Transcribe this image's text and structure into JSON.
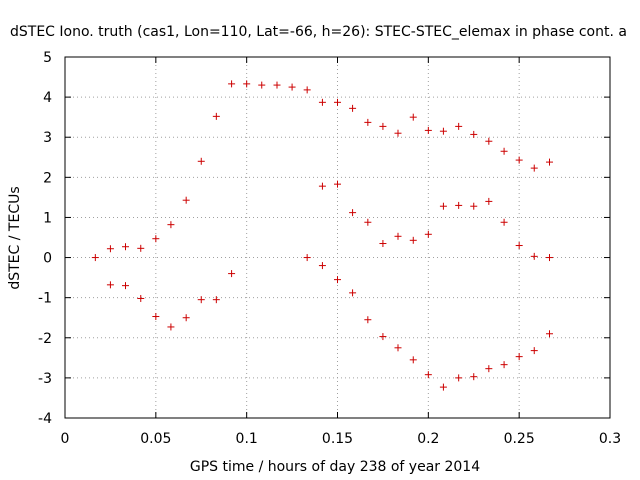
{
  "chart_data": {
    "type": "scatter",
    "title": "dSTEC Iono. truth (cas1, Lon=110, Lat=-66, h=26): STEC-STEC_elemax in phase cont. a",
    "xlabel": "GPS time / hours of day 238 of year 2014",
    "ylabel": "dSTEC  / TECUs",
    "xlim": [
      0,
      0.3
    ],
    "ylim": [
      -4,
      5
    ],
    "x_ticks": [
      0,
      0.05,
      0.1,
      0.15,
      0.2,
      0.25,
      0.3
    ],
    "x_tick_labels": [
      "0",
      "0.05",
      "0.1",
      "0.15",
      "0.2",
      "0.25",
      "0.3"
    ],
    "y_ticks": [
      -4,
      -3,
      -2,
      -1,
      0,
      1,
      2,
      3,
      4,
      5
    ],
    "y_tick_labels": [
      "-4",
      "-3",
      "-2",
      "-1",
      "0",
      "1",
      "2",
      "3",
      "4",
      "5"
    ],
    "grid": true,
    "marker": "+",
    "marker_color": "#cc0000",
    "series": [
      {
        "name": "dSTEC",
        "points": [
          [
            0.0167,
            0.0
          ],
          [
            0.025,
            0.22
          ],
          [
            0.025,
            -0.68
          ],
          [
            0.0333,
            0.27
          ],
          [
            0.0333,
            -0.7
          ],
          [
            0.0417,
            0.23
          ],
          [
            0.0417,
            -1.02
          ],
          [
            0.05,
            0.47
          ],
          [
            0.05,
            -1.47
          ],
          [
            0.0583,
            0.82
          ],
          [
            0.0583,
            -1.73
          ],
          [
            0.0667,
            1.43
          ],
          [
            0.0667,
            -1.5
          ],
          [
            0.075,
            2.4
          ],
          [
            0.075,
            -1.05
          ],
          [
            0.0833,
            3.52
          ],
          [
            0.0833,
            -1.05
          ],
          [
            0.0917,
            4.33
          ],
          [
            0.0917,
            -0.4
          ],
          [
            0.1,
            4.33
          ],
          [
            0.1083,
            4.3
          ],
          [
            0.1167,
            4.3
          ],
          [
            0.125,
            4.25
          ],
          [
            0.1333,
            4.18
          ],
          [
            0.1333,
            0.0
          ],
          [
            0.1417,
            3.87
          ],
          [
            0.1417,
            1.78
          ],
          [
            0.1417,
            -0.2
          ],
          [
            0.15,
            3.87
          ],
          [
            0.15,
            1.83
          ],
          [
            0.15,
            -0.55
          ],
          [
            0.1583,
            3.72
          ],
          [
            0.1583,
            1.12
          ],
          [
            0.1583,
            -0.88
          ],
          [
            0.1667,
            3.37
          ],
          [
            0.1667,
            0.88
          ],
          [
            0.1667,
            -1.55
          ],
          [
            0.175,
            3.27
          ],
          [
            0.175,
            0.35
          ],
          [
            0.175,
            -1.97
          ],
          [
            0.1833,
            3.1
          ],
          [
            0.1833,
            0.53
          ],
          [
            0.1833,
            -2.25
          ],
          [
            0.1917,
            3.5
          ],
          [
            0.1917,
            0.43
          ],
          [
            0.1917,
            -2.55
          ],
          [
            0.2,
            3.17
          ],
          [
            0.2,
            0.58
          ],
          [
            0.2,
            -2.92
          ],
          [
            0.2083,
            3.15
          ],
          [
            0.2083,
            1.28
          ],
          [
            0.2083,
            -3.23
          ],
          [
            0.2167,
            3.27
          ],
          [
            0.2167,
            1.3
          ],
          [
            0.2167,
            -3.0
          ],
          [
            0.225,
            3.07
          ],
          [
            0.225,
            1.28
          ],
          [
            0.225,
            -2.97
          ],
          [
            0.2333,
            2.9
          ],
          [
            0.2333,
            1.4
          ],
          [
            0.2333,
            -2.77
          ],
          [
            0.2417,
            2.65
          ],
          [
            0.2417,
            0.88
          ],
          [
            0.2417,
            -2.67
          ],
          [
            0.25,
            2.43
          ],
          [
            0.25,
            0.3
          ],
          [
            0.25,
            -2.47
          ],
          [
            0.2583,
            2.23
          ],
          [
            0.2583,
            0.03
          ],
          [
            0.2583,
            -2.32
          ],
          [
            0.2667,
            2.38
          ],
          [
            0.2667,
            0.0
          ],
          [
            0.2667,
            -1.9
          ]
        ]
      }
    ]
  }
}
